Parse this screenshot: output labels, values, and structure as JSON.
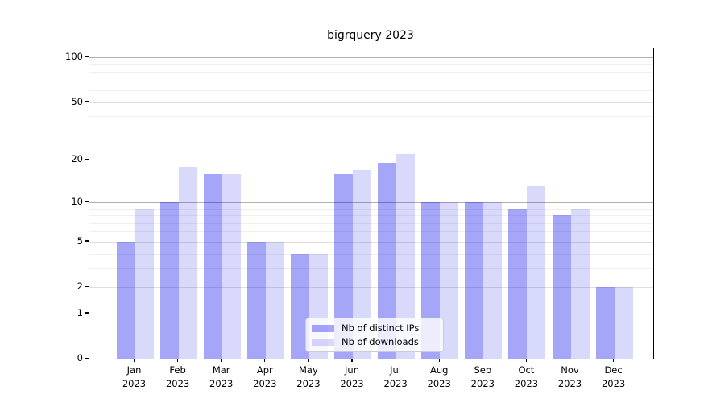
{
  "title": "bigrquery 2023",
  "colors": {
    "bar_base": "#0000ee",
    "ips_alpha": 0.35,
    "downloads_alpha": 0.15,
    "ips_on_white": "#a6a6f9",
    "downloads_on_white": "#d9d9fc",
    "grid_major": "#b0b0b0",
    "grid_mid": "#e0e0e0",
    "grid_minor": "#efefef",
    "spine": "#000000"
  },
  "legend": {
    "items": [
      {
        "label": "Nb of distinct IPs"
      },
      {
        "label": "Nb of downloads"
      }
    ]
  },
  "chart_data": {
    "type": "bar",
    "title": "bigrquery 2023",
    "categories": [
      {
        "month": "Jan",
        "year": "2023"
      },
      {
        "month": "Feb",
        "year": "2023"
      },
      {
        "month": "Mar",
        "year": "2023"
      },
      {
        "month": "Apr",
        "year": "2023"
      },
      {
        "month": "May",
        "year": "2023"
      },
      {
        "month": "Jun",
        "year": "2023"
      },
      {
        "month": "Jul",
        "year": "2023"
      },
      {
        "month": "Aug",
        "year": "2023"
      },
      {
        "month": "Sep",
        "year": "2023"
      },
      {
        "month": "Oct",
        "year": "2023"
      },
      {
        "month": "Nov",
        "year": "2023"
      },
      {
        "month": "Dec",
        "year": "2023"
      }
    ],
    "series": [
      {
        "name": "Nb of distinct IPs",
        "values": [
          5,
          10,
          16,
          5,
          4,
          16,
          19,
          10,
          10,
          9,
          8,
          2
        ]
      },
      {
        "name": "Nb of downloads",
        "values": [
          9,
          18,
          16,
          5,
          4,
          17,
          22,
          10,
          10,
          13,
          9,
          2
        ]
      }
    ],
    "xlabel": "",
    "ylabel": "",
    "yscale": "log1p",
    "ylim": [
      0,
      115
    ],
    "yticks": [
      0,
      1,
      2,
      5,
      10,
      20,
      50,
      100
    ],
    "grid": {
      "major": [
        1,
        10,
        100
      ],
      "mid": [
        2,
        5,
        20,
        50
      ],
      "minor": [
        3,
        4,
        6,
        7,
        8,
        9,
        30,
        40,
        60,
        70,
        80,
        90
      ]
    },
    "legend_position": "lower-center",
    "grid_on": true
  }
}
